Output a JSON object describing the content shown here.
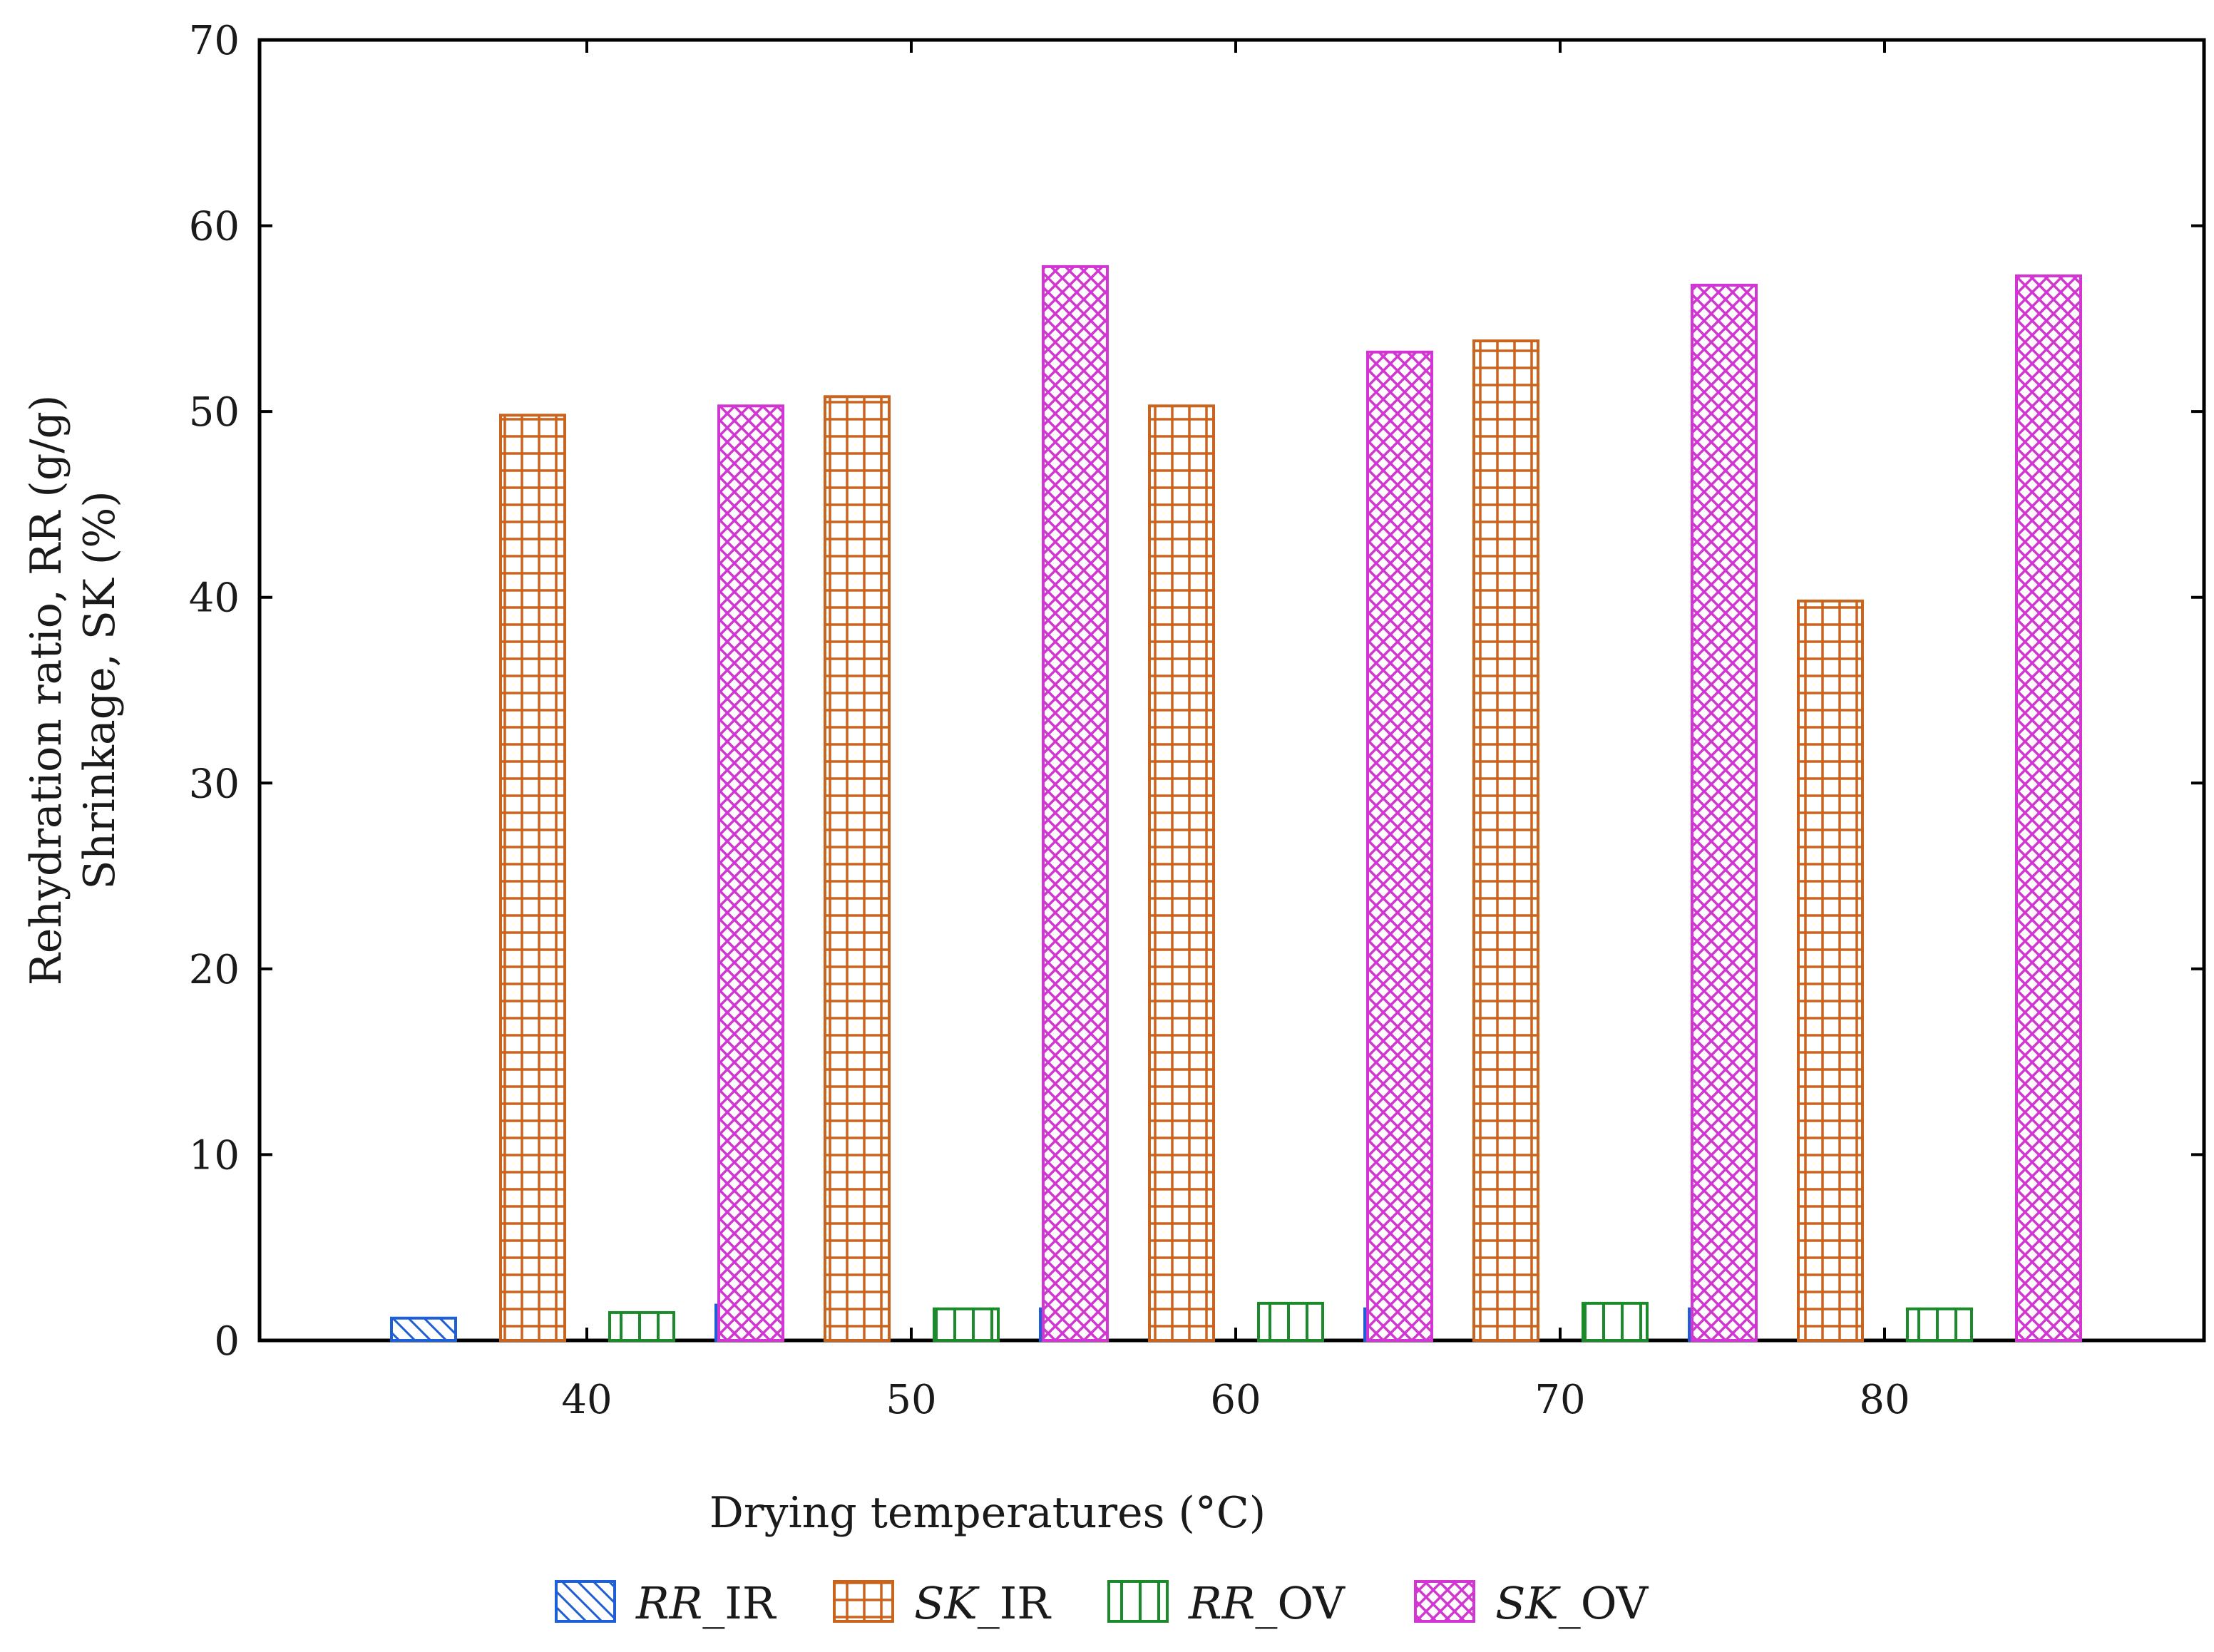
{
  "chart_data": {
    "type": "bar",
    "title": "",
    "xlabel": "Drying temperatures (°C)",
    "ylabel_lines": [
      "Rehydration ratio, RR (g/g)",
      "Shrinkage, SK (%)"
    ],
    "categories": [
      "40",
      "50",
      "60",
      "70",
      "80"
    ],
    "ylim": [
      0,
      70
    ],
    "yticks": [
      "0",
      "10",
      "20",
      "30",
      "40",
      "50",
      "60",
      "70"
    ],
    "grid": false,
    "legend_position": "bottom",
    "series": [
      {
        "name": "RR_IR",
        "name_italic": "RR",
        "name_rest": "_IR",
        "color": "#1f5fd6",
        "pattern": "diagonal",
        "values": [
          1.2,
          1.9,
          1.7,
          1.7,
          1.7
        ]
      },
      {
        "name": "SK_IR",
        "name_italic": "SK",
        "name_rest": "_IR",
        "color": "#c8641e",
        "pattern": "grid",
        "values": [
          49.8,
          50.8,
          50.3,
          53.8,
          39.8
        ]
      },
      {
        "name": "RR_OV",
        "name_italic": "RR",
        "name_rest": "_OV",
        "color": "#1a8a2a",
        "pattern": "vertical",
        "values": [
          1.5,
          1.7,
          2.0,
          2.0,
          1.7
        ]
      },
      {
        "name": "SK_OV",
        "name_italic": "SK",
        "name_rest": "_OV",
        "color": "#d236d2",
        "pattern": "crosshatch",
        "values": [
          50.3,
          57.8,
          53.2,
          56.8,
          57.3
        ]
      }
    ]
  }
}
